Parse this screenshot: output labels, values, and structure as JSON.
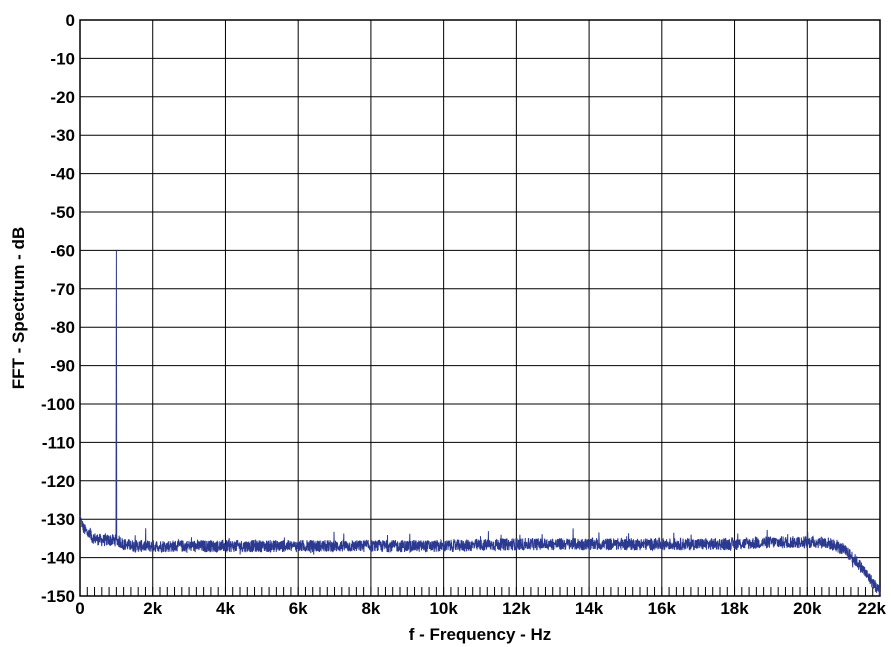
{
  "chart_data": {
    "type": "line",
    "title": "",
    "xlabel": "f - Frequency - Hz",
    "ylabel": "FFT - Spectrum - dB",
    "xlim": [
      0,
      22000
    ],
    "ylim": [
      -150,
      0
    ],
    "x_ticks": [
      {
        "value": 0,
        "label": "0"
      },
      {
        "value": 2000,
        "label": "2k"
      },
      {
        "value": 4000,
        "label": "4k"
      },
      {
        "value": 6000,
        "label": "6k"
      },
      {
        "value": 8000,
        "label": "8k"
      },
      {
        "value": 10000,
        "label": "10k"
      },
      {
        "value": 12000,
        "label": "12k"
      },
      {
        "value": 14000,
        "label": "14k"
      },
      {
        "value": 16000,
        "label": "16k"
      },
      {
        "value": 18000,
        "label": "18k"
      },
      {
        "value": 20000,
        "label": "20k"
      },
      {
        "value": 22000,
        "label": "22k"
      }
    ],
    "y_ticks": [
      {
        "value": 0,
        "label": "0"
      },
      {
        "value": -10,
        "label": "-10"
      },
      {
        "value": -20,
        "label": "-20"
      },
      {
        "value": -30,
        "label": "-30"
      },
      {
        "value": -40,
        "label": "-40"
      },
      {
        "value": -50,
        "label": "-50"
      },
      {
        "value": -60,
        "label": "-60"
      },
      {
        "value": -70,
        "label": "-70"
      },
      {
        "value": -80,
        "label": "-80"
      },
      {
        "value": -90,
        "label": "-90"
      },
      {
        "value": -100,
        "label": "-100"
      },
      {
        "value": -110,
        "label": "-110"
      },
      {
        "value": -120,
        "label": "-120"
      },
      {
        "value": -130,
        "label": "-130"
      },
      {
        "value": -140,
        "label": "-140"
      },
      {
        "value": -150,
        "label": "-150"
      }
    ],
    "minor_tick_step": 200,
    "grid": true,
    "line_color": "#2b3990",
    "series": [
      {
        "points": [
          [
            0,
            -129
          ],
          [
            50,
            -131
          ],
          [
            100,
            -132.5
          ],
          [
            200,
            -133.5
          ],
          [
            300,
            -134.5
          ],
          [
            400,
            -135
          ],
          [
            600,
            -135.5
          ],
          [
            800,
            -135.5
          ],
          [
            990,
            -135.5
          ],
          [
            1000,
            -60
          ],
          [
            1010,
            -135.5
          ],
          [
            1200,
            -136.5
          ],
          [
            1500,
            -137
          ],
          [
            2000,
            -137
          ],
          [
            3000,
            -137
          ],
          [
            4000,
            -137
          ],
          [
            6000,
            -137
          ],
          [
            8000,
            -137
          ],
          [
            10000,
            -137
          ],
          [
            12000,
            -136.5
          ],
          [
            14000,
            -136.5
          ],
          [
            16000,
            -136.5
          ],
          [
            18000,
            -136.5
          ],
          [
            19000,
            -136
          ],
          [
            20000,
            -136
          ],
          [
            20500,
            -136
          ],
          [
            20800,
            -137
          ],
          [
            21000,
            -138
          ],
          [
            21200,
            -139.5
          ],
          [
            21400,
            -141.5
          ],
          [
            21600,
            -144
          ],
          [
            21800,
            -146.5
          ],
          [
            22000,
            -149
          ]
        ]
      }
    ]
  }
}
